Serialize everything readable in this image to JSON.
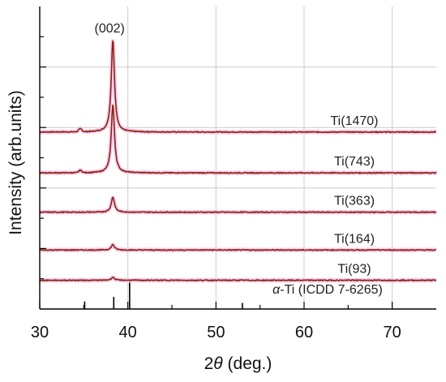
{
  "chart_data": {
    "type": "line",
    "xlabel_prefix": "2",
    "xlabel_theta": "θ",
    "xlabel_suffix": " (deg.)",
    "ylabel": "Intensity (arb.units)",
    "xlim": [
      30,
      75
    ],
    "ylim": [
      0,
      10
    ],
    "xticks": [
      30,
      40,
      50,
      60,
      70
    ],
    "grid": true,
    "peak_label": "(002)",
    "peak_label_x": 38.3,
    "series": [
      {
        "name": "Ti(1470)",
        "baseline": 5.85,
        "peak_height": 3.05,
        "minor_height": 0.1,
        "noise": 0.03
      },
      {
        "name": "Ti(743)",
        "baseline": 4.5,
        "peak_height": 2.25,
        "minor_height": 0.08,
        "noise": 0.03
      },
      {
        "name": "Ti(363)",
        "baseline": 3.2,
        "peak_height": 0.5,
        "minor_height": 0.0,
        "noise": 0.03
      },
      {
        "name": "Ti(164)",
        "baseline": 1.95,
        "peak_height": 0.18,
        "minor_height": 0.0,
        "noise": 0.03
      },
      {
        "name": "Ti(93)",
        "baseline": 0.95,
        "peak_height": 0.1,
        "minor_height": 0.0,
        "noise": 0.03
      }
    ],
    "peak_center": 38.3,
    "peak_width": 0.22,
    "minor_peak_center": 34.6,
    "reference": {
      "label_alpha": "α",
      "label_rest": "-Ti (ICDD 7-6265)",
      "lines": [
        {
          "x": 35.1,
          "height": 0.25
        },
        {
          "x": 38.4,
          "height": 0.4
        },
        {
          "x": 40.2,
          "height": 0.95
        },
        {
          "x": 53.0,
          "height": 0.2
        }
      ]
    },
    "colors": {
      "line": "#8b2412",
      "halo": "#f6cdea",
      "grid": "#cccccc",
      "axis": "#000000"
    }
  }
}
